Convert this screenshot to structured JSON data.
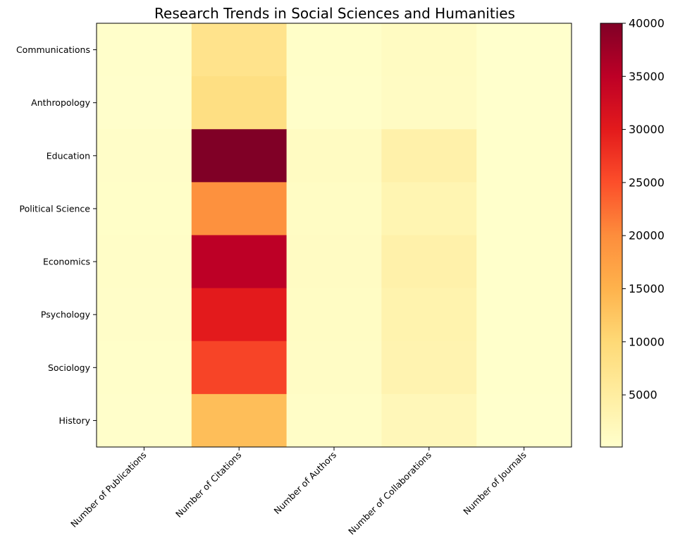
{
  "chart_data": {
    "type": "heatmap",
    "title": "Research Trends in Social Sciences and Humanities",
    "xlabel": "",
    "ylabel": "",
    "columns": [
      "Number of Publications",
      "Number of Citations",
      "Number of Authors",
      "Number of Collaborations",
      "Number of Journals"
    ],
    "rows": [
      "Communications",
      "Anthropology",
      "Education",
      "Political Science",
      "Economics",
      "Psychology",
      "Sociology",
      "History"
    ],
    "values": [
      [
        300,
        7500,
        500,
        1200,
        100
      ],
      [
        250,
        8500,
        450,
        1100,
        90
      ],
      [
        600,
        40000,
        1200,
        4000,
        200
      ],
      [
        500,
        19500,
        1000,
        3000,
        150
      ],
      [
        650,
        35000,
        1100,
        4000,
        180
      ],
      [
        550,
        30000,
        1000,
        3500,
        170
      ],
      [
        450,
        26000,
        900,
        3300,
        150
      ],
      [
        350,
        13500,
        700,
        2200,
        120
      ]
    ],
    "colormap": "YlOrRd",
    "colormap_stops": [
      "#ffffcc",
      "#ffeda0",
      "#fed976",
      "#feb24c",
      "#fd8d3c",
      "#fc4e2a",
      "#e31a1c",
      "#bd0026",
      "#800026"
    ],
    "colorbar": {
      "vmin": 90,
      "vmax": 40000,
      "ticks": [
        5000,
        10000,
        15000,
        20000,
        25000,
        30000,
        35000,
        40000
      ],
      "tick_labels": [
        "5000",
        "10000",
        "15000",
        "20000",
        "25000",
        "30000",
        "35000",
        "40000"
      ]
    },
    "grid": false
  }
}
